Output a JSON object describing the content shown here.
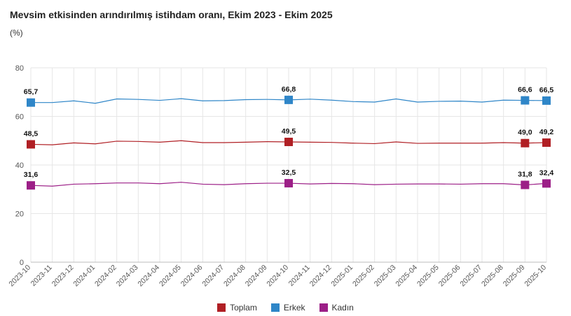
{
  "title": "Mevsim etkisinden arındırılmış istihdam oranı, Ekim 2023 - Ekim 2025",
  "unit_label": "(%)",
  "chart_data": {
    "type": "line",
    "title": "Mevsim etkisinden arındırılmış istihdam oranı, Ekim 2023 - Ekim 2025",
    "ylabel": "(%)",
    "ylim": [
      0,
      80
    ],
    "yticks": [
      0,
      20,
      40,
      60,
      80
    ],
    "grid": true,
    "legend_position": "bottom",
    "x": [
      "2023-10",
      "2023-11",
      "2023-12",
      "2024-01",
      "2024-02",
      "2024-03",
      "2024-04",
      "2024-05",
      "2024-06",
      "2024-07",
      "2024-08",
      "2024-09",
      "2024-10",
      "2024-11",
      "2024-12",
      "2025-01",
      "2025-02",
      "2025-03",
      "2025-04",
      "2025-05",
      "2025-06",
      "2025-07",
      "2025-08",
      "2025-09",
      "2025-10"
    ],
    "series": [
      {
        "name": "Toplam",
        "color": "#b01f24",
        "values": [
          48.5,
          48.3,
          49.1,
          48.7,
          49.8,
          49.7,
          49.4,
          50.0,
          49.2,
          49.2,
          49.4,
          49.6,
          49.5,
          49.4,
          49.3,
          49.0,
          48.8,
          49.5,
          48.9,
          49.0,
          49.0,
          49.0,
          49.2,
          49.0,
          49.2
        ],
        "labels": [
          {
            "index": 0,
            "text": "48,5"
          },
          {
            "index": 12,
            "text": "49,5"
          },
          {
            "index": 23,
            "text": "49,0"
          },
          {
            "index": 24,
            "text": "49,2"
          }
        ]
      },
      {
        "name": "Erkek",
        "color": "#2f86c8",
        "values": [
          65.7,
          65.7,
          66.4,
          65.4,
          67.2,
          67.0,
          66.6,
          67.3,
          66.4,
          66.5,
          66.9,
          67.0,
          66.8,
          67.1,
          66.7,
          66.1,
          65.9,
          67.2,
          65.9,
          66.2,
          66.3,
          65.9,
          66.7,
          66.6,
          66.5
        ],
        "labels": [
          {
            "index": 0,
            "text": "65,7"
          },
          {
            "index": 12,
            "text": "66,8"
          },
          {
            "index": 23,
            "text": "66,6"
          },
          {
            "index": 24,
            "text": "66,5"
          }
        ]
      },
      {
        "name": "Kadın",
        "color": "#9c1f87",
        "values": [
          31.6,
          31.3,
          32.1,
          32.3,
          32.6,
          32.6,
          32.3,
          32.9,
          32.1,
          31.9,
          32.3,
          32.5,
          32.5,
          32.2,
          32.4,
          32.3,
          31.9,
          32.1,
          32.2,
          32.2,
          32.1,
          32.3,
          32.3,
          31.8,
          32.4
        ],
        "labels": [
          {
            "index": 0,
            "text": "31,6"
          },
          {
            "index": 12,
            "text": "32,5"
          },
          {
            "index": 23,
            "text": "31,8"
          },
          {
            "index": 24,
            "text": "32,4"
          }
        ]
      }
    ]
  }
}
